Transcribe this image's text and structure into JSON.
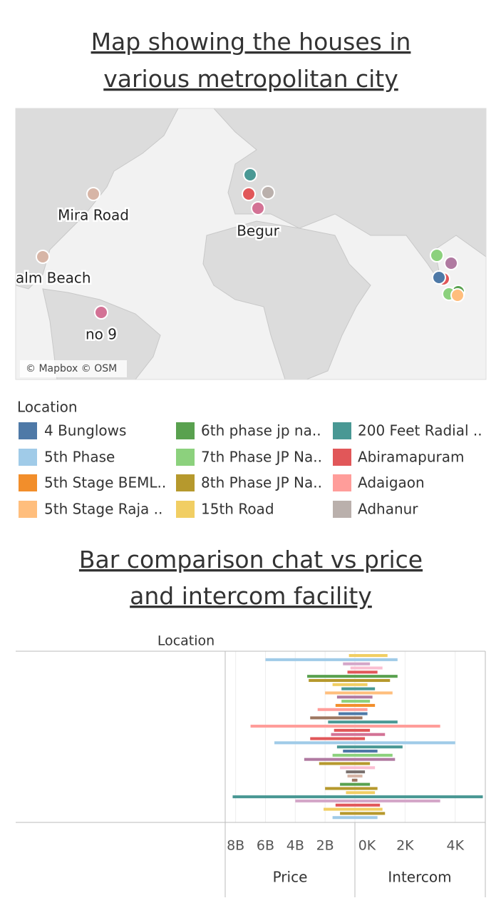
{
  "header": {
    "map_title": "Map showing the houses in various metropolitan city",
    "bar_title": "Bar comparison chat vs price and intercom facility"
  },
  "map": {
    "labels": [
      "Mira Road",
      "Begur",
      "alm Beach",
      "no 9"
    ],
    "attribution": "© Mapbox © OSM"
  },
  "legend": {
    "title": "Location",
    "items": [
      {
        "name": "4 Bunglows",
        "color": "#4e79a7"
      },
      {
        "name": "5th Phase",
        "color": "#a0cbe8"
      },
      {
        "name": "5th Stage BEML..",
        "color": "#f28e2b"
      },
      {
        "name": "5th Stage Raja ..",
        "color": "#ffbe7d"
      },
      {
        "name": "6th phase jp na..",
        "color": "#59a14f"
      },
      {
        "name": "7th Phase JP Na..",
        "color": "#8cd17d"
      },
      {
        "name": "8th Phase JP Na..",
        "color": "#b6992d"
      },
      {
        "name": "15th Road",
        "color": "#f1ce63"
      },
      {
        "name": "200 Feet Radial ..",
        "color": "#499894"
      },
      {
        "name": "Abiramapuram",
        "color": "#e15759"
      },
      {
        "name": "Adaigaon",
        "color": "#ff9d9a"
      },
      {
        "name": "Adhanur",
        "color": "#bab0ac"
      }
    ]
  },
  "bar_chart": {
    "type": "bar",
    "row_header": "Location",
    "price": {
      "label": "Price",
      "xlim": [
        0,
        8700000000.0
      ],
      "xticks": [
        {
          "value": 8000000000.0,
          "label": "8B"
        },
        {
          "value": 6000000000.0,
          "label": "6B"
        },
        {
          "value": 4000000000.0,
          "label": "4B"
        },
        {
          "value": 2000000000.0,
          "label": "2B"
        }
      ]
    },
    "intercom": {
      "label": "Intercom",
      "xlim": [
        0,
        5200
      ],
      "xticks": [
        {
          "value": 0,
          "label": "0K"
        },
        {
          "value": 2000,
          "label": "2K"
        },
        {
          "value": 4000,
          "label": "4K"
        }
      ]
    },
    "rows": [
      {
        "color": "#f1ce63",
        "price": 400000000.0,
        "intercom": 1300
      },
      {
        "color": "#a0cbe8",
        "price": 6000000000.0,
        "intercom": 1700
      },
      {
        "color": "#d4a6c8",
        "price": 800000000.0,
        "intercom": 600
      },
      {
        "color": "#fabfd2",
        "price": 300000000.0,
        "intercom": 1100
      },
      {
        "color": "#e15759",
        "price": 500000000.0,
        "intercom": 900
      },
      {
        "color": "#59a14f",
        "price": 3200000000.0,
        "intercom": 1700
      },
      {
        "color": "#b6992d",
        "price": 3100000000.0,
        "intercom": 1400
      },
      {
        "color": "#f1ce63",
        "price": 1500000000.0,
        "intercom": 500
      },
      {
        "color": "#499894",
        "price": 900000000.0,
        "intercom": 800
      },
      {
        "color": "#ffbe7d",
        "price": 2000000000.0,
        "intercom": 1500
      },
      {
        "color": "#b07aa1",
        "price": 1200000000.0,
        "intercom": 700
      },
      {
        "color": "#8cd17d",
        "price": 900000000.0,
        "intercom": 600
      },
      {
        "color": "#f28e2b",
        "price": 1300000000.0,
        "intercom": 800
      },
      {
        "color": "#ff9d9a",
        "price": 2500000000.0,
        "intercom": 500
      },
      {
        "color": "#4e79a7",
        "price": 1100000000.0,
        "intercom": 500
      },
      {
        "color": "#9d7660",
        "price": 3000000000.0,
        "intercom": 300
      },
      {
        "color": "#499894",
        "price": 1800000000.0,
        "intercom": 1700
      },
      {
        "color": "#ff9d9a",
        "price": 7000000000.0,
        "intercom": 3400
      },
      {
        "color": "#e15759",
        "price": 1400000000.0,
        "intercom": 600
      },
      {
        "color": "#d37295",
        "price": 1600000000.0,
        "intercom": 1200
      },
      {
        "color": "#e15759",
        "price": 3000000000.0,
        "intercom": 400
      },
      {
        "color": "#a0cbe8",
        "price": 5400000000.0,
        "intercom": 4000
      },
      {
        "color": "#499894",
        "price": 1200000000.0,
        "intercom": 1900
      },
      {
        "color": "#4e79a7",
        "price": 800000000.0,
        "intercom": 900
      },
      {
        "color": "#8cd17d",
        "price": 1500000000.0,
        "intercom": 1500
      },
      {
        "color": "#b07aa1",
        "price": 3400000000.0,
        "intercom": 1600
      },
      {
        "color": "#b6992d",
        "price": 2400000000.0,
        "intercom": 600
      },
      {
        "color": "#fabfd2",
        "price": 1000000000.0,
        "intercom": 800
      },
      {
        "color": "#79706e",
        "price": 600000000.0,
        "intercom": 400
      },
      {
        "color": "#d7b5a6",
        "price": 500000000.0,
        "intercom": 300
      },
      {
        "color": "#9d7660",
        "price": 200000000.0,
        "intercom": 100
      },
      {
        "color": "#59a14f",
        "price": 1000000000.0,
        "intercom": 600
      },
      {
        "color": "#b6992d",
        "price": 2000000000.0,
        "intercom": 900
      },
      {
        "color": "#f1ce63",
        "price": 600000000.0,
        "intercom": 800
      },
      {
        "color": "#499894",
        "price": 8200000000.0,
        "intercom": 5100
      },
      {
        "color": "#d4a6c8",
        "price": 4000000000.0,
        "intercom": 3400
      },
      {
        "color": "#e15759",
        "price": 1300000000.0,
        "intercom": 1000
      },
      {
        "color": "#f1ce63",
        "price": 2100000000.0,
        "intercom": 1100
      },
      {
        "color": "#b6992d",
        "price": 1000000000.0,
        "intercom": 1200
      },
      {
        "color": "#a0cbe8",
        "price": 1500000000.0,
        "intercom": 900
      }
    ]
  }
}
